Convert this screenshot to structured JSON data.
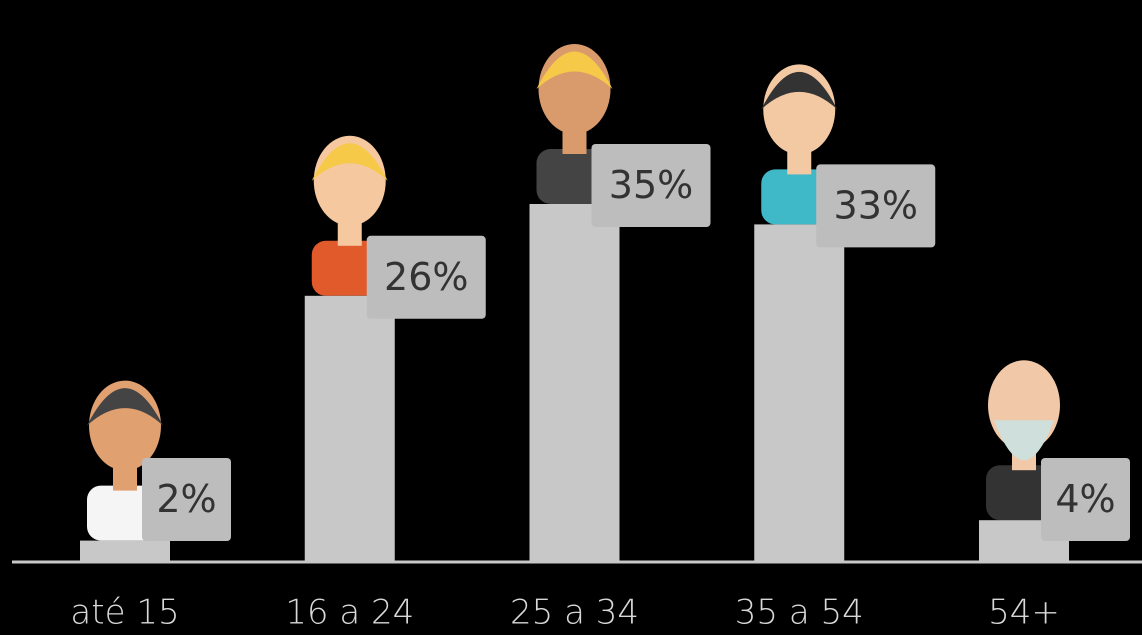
{
  "chart_data": {
    "type": "bar",
    "categories": [
      "até 15",
      "16 a 24",
      "25 a 34",
      "35 a 54",
      "54+"
    ],
    "values": [
      2,
      26,
      35,
      33,
      4
    ],
    "value_labels": [
      "2%",
      "26%",
      "35%",
      "33%",
      "4%"
    ],
    "color": "#c8c8c8"
  }
}
